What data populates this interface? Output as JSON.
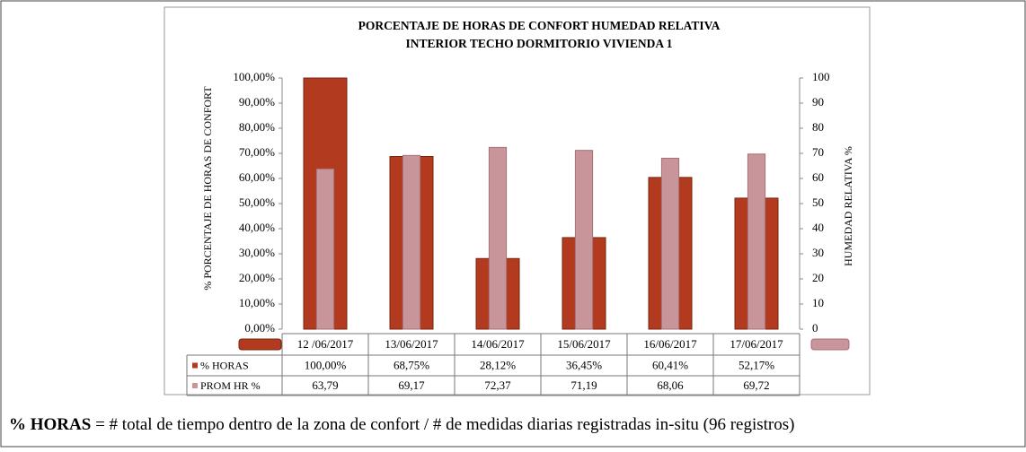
{
  "chart_data": {
    "type": "bar",
    "title": [
      "PORCENTAJE DE HORAS DE CONFORT HUMEDAD RELATIVA",
      "INTERIOR TECHO DORMITORIO  VIVIENDA 1"
    ],
    "ylabel": "% PORCENTAJE DE HORAS DE CONFORT",
    "y2label": "HUMEDAD RELATIVA  %",
    "categories": [
      "12 /06/2017",
      "13/06/2017",
      "14/06/2017",
      "15/06/2017",
      "16/06/2017",
      "17/06/2017"
    ],
    "series": [
      {
        "name": "% HORAS",
        "color": "#b23a1f",
        "axis": "y",
        "values": [
          100,
          68.75,
          28.12,
          36.45,
          60.41,
          52.17
        ],
        "value_labels": [
          "100,00%",
          "68,75%",
          "28,12%",
          "36,45%",
          "60,41%",
          "52,17%"
        ]
      },
      {
        "name": "PROM HR %",
        "color": "#c8959a",
        "axis": "y2",
        "values": [
          63.79,
          69.17,
          72.37,
          71.19,
          68.06,
          69.72
        ],
        "value_labels": [
          "63,79",
          "69,17",
          "72,37",
          "71,19",
          "68,06",
          "69,72"
        ]
      }
    ],
    "ylim": [
      0,
      100
    ],
    "yticks": [
      {
        "value": 0,
        "label": "0,00%"
      },
      {
        "value": 10,
        "label": "10,00%"
      },
      {
        "value": 20,
        "label": "20,00%"
      },
      {
        "value": 30,
        "label": "30,00%"
      },
      {
        "value": 40,
        "label": "40,00%"
      },
      {
        "value": 50,
        "label": "50,00%"
      },
      {
        "value": 60,
        "label": "60,00%"
      },
      {
        "value": 70,
        "label": "70,00%"
      },
      {
        "value": 80,
        "label": "80,00%"
      },
      {
        "value": 90,
        "label": "90,00%"
      },
      {
        "value": 100,
        "label": "100,00%"
      }
    ],
    "y2lim": [
      0,
      100
    ],
    "y2ticks": [
      0,
      10,
      20,
      30,
      40,
      50,
      60,
      70,
      80,
      90,
      100
    ],
    "grid": false
  },
  "caption": {
    "term": "% HORAS",
    "text": " = # total de tiempo dentro de la zona de confort / # de medidas diarias registradas in-situ (96 registros)"
  }
}
